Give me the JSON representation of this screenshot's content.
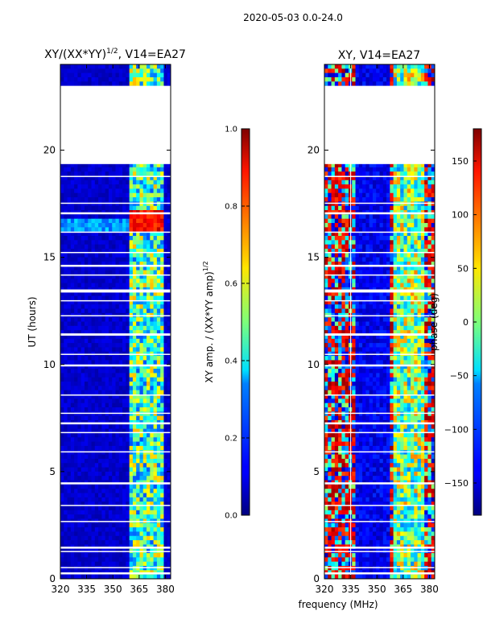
{
  "suptitle": "2020-05-03 0.0-24.0",
  "chart_data": [
    {
      "type": "heatmap",
      "title_main": "XY/(XX*YY)",
      "title_sup": "1/2",
      "title_rest": ", V14=EA27",
      "xlabel": "",
      "ylabel": "UT (hours)",
      "xlim": [
        320,
        383
      ],
      "ylim": [
        0,
        24
      ],
      "xticks": [
        320,
        335,
        350,
        365,
        380
      ],
      "yticks": [
        0,
        5,
        10,
        15,
        20
      ],
      "colorbar": {
        "label_main": "XY amp. / (XX*YY amp)",
        "label_sup": "1/2",
        "range": [
          0.0,
          1.0
        ],
        "ticks": [
          "0.0",
          "0.2",
          "0.4",
          "0.6",
          "0.8",
          "1.0"
        ]
      }
    },
    {
      "type": "heatmap",
      "title": "XY, V14=EA27",
      "xlabel": "frequency (MHz)",
      "ylabel": "",
      "xlim": [
        320,
        383
      ],
      "ylim": [
        0,
        24
      ],
      "xticks": [
        320,
        335,
        350,
        365,
        380
      ],
      "yticks": [
        0,
        5,
        10,
        15,
        20
      ],
      "colorbar": {
        "label": "phase (deg)",
        "range": [
          -180,
          180
        ],
        "ticks": [
          "−150",
          "−100",
          "−50",
          "0",
          "50",
          "100",
          "150"
        ],
        "tick_values": [
          -150,
          -100,
          -50,
          0,
          50,
          100,
          150
        ]
      }
    }
  ],
  "colormap": "jet"
}
